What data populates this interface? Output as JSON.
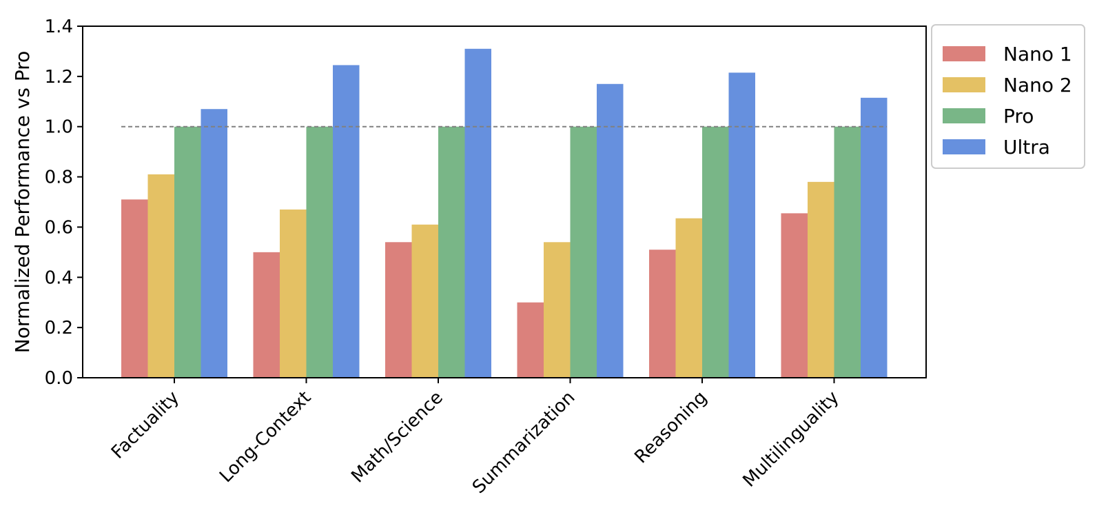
{
  "chart_data": {
    "type": "bar",
    "title": "",
    "xlabel": "",
    "ylabel": "Normalized Performance vs Pro",
    "ylim": [
      0,
      1.4
    ],
    "yticks": [
      "0.0",
      "0.2",
      "0.4",
      "0.6",
      "0.8",
      "1.0",
      "1.2",
      "1.4"
    ],
    "categories": [
      "Factuality",
      "Long-Context",
      "Math/Science",
      "Summarization",
      "Reasoning",
      "Multilinguality"
    ],
    "reference_line": {
      "value": 1.0,
      "style": "dashed",
      "color": "#808080"
    },
    "series": [
      {
        "name": "Nano 1",
        "color": "#DB817C",
        "values": [
          0.71,
          0.5,
          0.54,
          0.3,
          0.51,
          0.655
        ]
      },
      {
        "name": "Nano 2",
        "color": "#E4C164",
        "values": [
          0.81,
          0.67,
          0.61,
          0.54,
          0.635,
          0.78
        ]
      },
      {
        "name": "Pro",
        "color": "#79B687",
        "values": [
          1.0,
          1.0,
          1.0,
          1.0,
          1.0,
          1.0
        ]
      },
      {
        "name": "Ultra",
        "color": "#6690DE",
        "values": [
          1.07,
          1.245,
          1.31,
          1.17,
          1.215,
          1.115
        ]
      }
    ],
    "legend": {
      "position": "outside-top-right"
    },
    "grid": false
  }
}
